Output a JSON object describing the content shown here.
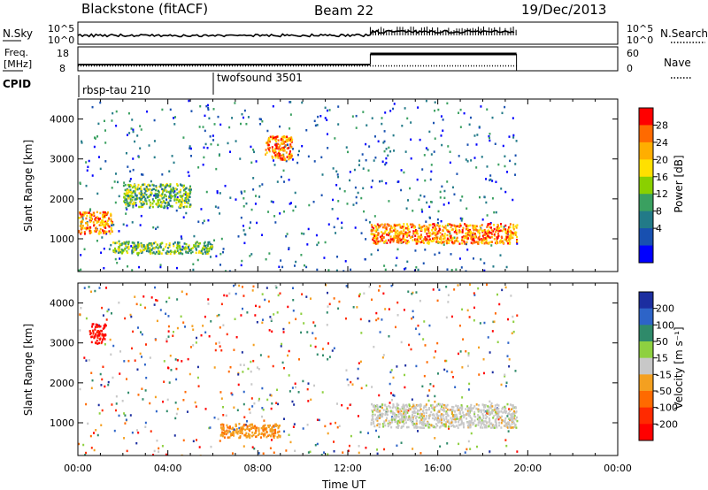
{
  "header": {
    "radar": "Blackstone (fitACF)",
    "beam": "Beam 22",
    "date": "19/Dec/2013"
  },
  "noise_panel": {
    "left_label": "N.Sky",
    "left_ticks": [
      "10^5",
      "10^0"
    ],
    "right_ticks": [
      "10^5",
      "10^0"
    ],
    "right_label": "N.Search"
  },
  "freq_panel": {
    "left_label_1": "Freq.",
    "left_label_2": "[MHz]",
    "left_ticks": [
      "18",
      "8"
    ],
    "right_ticks": [
      "60",
      "0"
    ],
    "right_label": "Nave"
  },
  "cpid": {
    "label": "CPID",
    "segments": [
      {
        "name": "rbsp-tau 210",
        "start_hour": 0
      },
      {
        "name": "twofsound 3501",
        "start_hour": 6
      }
    ]
  },
  "chart_data": [
    {
      "type": "heatmap",
      "title": "Power",
      "ylabel": "Slant Range [km]",
      "xlim": [
        0,
        24
      ],
      "ylim": [
        180,
        4500
      ],
      "y_ticks": [
        "1000",
        "2000",
        "3000",
        "4000"
      ],
      "colorbar": {
        "label": "Power [dB]",
        "ticks": [
          "28",
          "24",
          "20",
          "16",
          "12",
          "8",
          "4"
        ],
        "colors": [
          "#ff0000",
          "#ff6a00",
          "#ffae00",
          "#ffe000",
          "#8ad000",
          "#3aa060",
          "#227a88",
          "#1850b0",
          "#0000ff"
        ]
      },
      "features": [
        {
          "hours": [
            0,
            1.5
          ],
          "range_km": [
            1150,
            1700
          ],
          "level": "strong"
        },
        {
          "hours": [
            8.3,
            9.5
          ],
          "range_km": [
            3000,
            3600
          ],
          "level": "strong"
        },
        {
          "hours": [
            13,
            19.5
          ],
          "range_km": [
            900,
            1400
          ],
          "level": "strong"
        },
        {
          "hours": [
            2,
            5
          ],
          "range_km": [
            1800,
            2400
          ],
          "level": "moderate"
        },
        {
          "hours": [
            1.5,
            6
          ],
          "range_km": [
            650,
            950
          ],
          "level": "moderate"
        }
      ]
    },
    {
      "type": "heatmap",
      "title": "Velocity",
      "ylabel": "Slant Range [km]",
      "xlabel": "Time UT",
      "xlim": [
        0,
        24
      ],
      "ylim": [
        180,
        4500
      ],
      "y_ticks": [
        "1000",
        "2000",
        "3000",
        "4000"
      ],
      "x_ticks": [
        "00:00",
        "04:00",
        "08:00",
        "12:00",
        "16:00",
        "20:00",
        "00:00"
      ],
      "colorbar": {
        "label": "Velocity [m s⁻¹]",
        "ticks": [
          "200",
          "100",
          "50",
          "15",
          "-15",
          "-50",
          "-100",
          "-200"
        ],
        "colors": [
          "#1c2ea0",
          "#2d64c8",
          "#2f8a6a",
          "#8ed040",
          "#c8c8c8",
          "#f4a020",
          "#ff6a00",
          "#ff2a00",
          "#ff0000"
        ]
      },
      "features": [
        {
          "hours": [
            13,
            19.5
          ],
          "range_km": [
            900,
            1500
          ],
          "velocity_band": "-15 to 15"
        },
        {
          "hours": [
            6.3,
            9
          ],
          "range_km": [
            650,
            1000
          ],
          "velocity_band": "-15 to -50"
        },
        {
          "hours": [
            0.5,
            1.2
          ],
          "range_km": [
            3000,
            3500
          ],
          "velocity_band": "-100 to -200"
        }
      ]
    }
  ]
}
